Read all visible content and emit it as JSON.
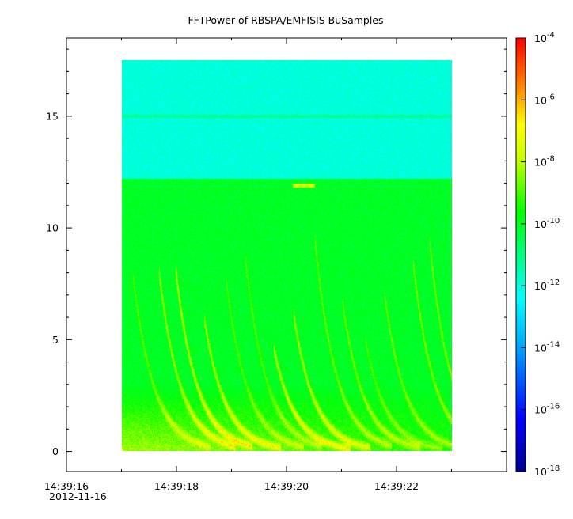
{
  "chart_data": {
    "type": "heatmap",
    "title": "FFTPower of RBSPA/EMFISIS  BuSamples",
    "xlabel": "",
    "ylabel": "",
    "x_date": "2012-11-16",
    "x_ticks": [
      "14:39:16",
      "14:39:18",
      "14:39:20",
      "14:39:22"
    ],
    "x_range": [
      "14:39:16",
      "14:39:24"
    ],
    "data_x_range": [
      "14:39:17",
      "14:39:23"
    ],
    "y_ticks": [
      0,
      5,
      10,
      15
    ],
    "y_range": [
      -0.9,
      18.5
    ],
    "data_y_range": [
      0,
      17.5
    ],
    "colorbar": {
      "scale": "log",
      "range": [
        1e-18,
        0.0001
      ],
      "tick_labels": [
        {
          "base": "10",
          "exp": "-4"
        },
        {
          "base": "10",
          "exp": "-6"
        },
        {
          "base": "10",
          "exp": "-8"
        },
        {
          "base": "10",
          "exp": "-10"
        },
        {
          "base": "10",
          "exp": "-12"
        },
        {
          "base": "10",
          "exp": "-14"
        },
        {
          "base": "10",
          "exp": "-16"
        },
        {
          "base": "10",
          "exp": "-18"
        }
      ],
      "colormap": [
        "#00008f",
        "#0000ff",
        "#00ffff",
        "#00ff00",
        "#ffff00",
        "#ff8000",
        "#ff0000"
      ]
    },
    "features": {
      "background_low_band_power": 1e-10,
      "background_high_band_power": 1e-12,
      "band_boundary_freq": 12.2,
      "horizontal_line_freq": 15.0,
      "short_bright_line": {
        "time_start": "14:39:20.1",
        "time_end": "14:39:20.5",
        "freq": 11.9,
        "power": 1e-08
      }
    }
  }
}
